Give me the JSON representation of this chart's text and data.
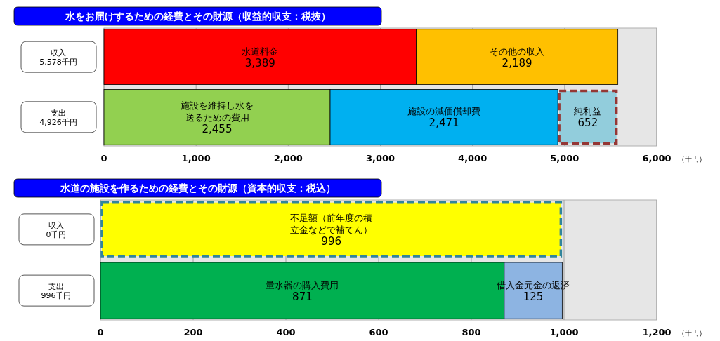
{
  "chart_data": [
    {
      "type": "bar",
      "title": "水をお届けするための経費とその財源（収益的収支：税抜）",
      "xlabel": "（千円）",
      "orientation": "horizontal",
      "stacked": true,
      "grid": "x",
      "categories": [
        "収入\n5,578千円",
        "支出\n4,926千円"
      ],
      "xlim": [
        0,
        6000
      ],
      "xticks": [
        0,
        {
          "value": 1000,
          "label": "1,000"
        },
        {
          "value": 2000,
          "label": "2,000"
        },
        {
          "value": 3000,
          "label": "3,000"
        },
        {
          "value": 4000,
          "label": "4,000"
        },
        {
          "value": 5000,
          "label": "5,000"
        },
        {
          "value": 6000,
          "label": "6,000"
        }
      ],
      "series": [
        {
          "name": "水道料金",
          "color": "#ff0000",
          "values": [
            3389,
            null
          ],
          "value_labels": [
            "3,389",
            null
          ]
        },
        {
          "name": "その他の収入",
          "color": "#ffc000",
          "values": [
            2189,
            null
          ],
          "value_labels": [
            "2,189",
            null
          ]
        },
        {
          "name": "施設を維持し水を送るための費用",
          "color": "#92d050",
          "values": [
            null,
            2455
          ],
          "value_labels": [
            null,
            "2,455"
          ]
        },
        {
          "name": "施設の減価償却費",
          "color": "#00b0f0",
          "values": [
            null,
            2471
          ],
          "value_labels": [
            null,
            "2,471"
          ]
        },
        {
          "name": "純利益",
          "color": "#92cddc",
          "values": [
            null,
            652
          ],
          "value_labels": [
            null,
            "652"
          ],
          "line_style": "dashed"
        }
      ]
    },
    {
      "type": "bar",
      "title": "水道の施設を作るための経費とその財源（資本的収支：税込）",
      "xlabel": "（千円）",
      "orientation": "horizontal",
      "stacked": true,
      "grid": "x",
      "categories": [
        "収入\n0千円",
        "支出\n996千円"
      ],
      "xlim": [
        0,
        1200
      ],
      "xticks": [
        0,
        200,
        400,
        600,
        800,
        {
          "value": 1000,
          "label": "1,000"
        },
        {
          "value": 1200,
          "label": "1,200"
        }
      ],
      "series": [
        {
          "name": "不足額（前年度の積立金などで補てん）",
          "color": "#ffff00",
          "values": [
            996,
            null
          ],
          "value_labels": [
            "996",
            null
          ],
          "line_style": "dashed"
        },
        {
          "name": "量水器の購入費用",
          "color": "#00b050",
          "values": [
            null,
            871
          ],
          "value_labels": [
            null,
            "871"
          ]
        },
        {
          "name": "借入金元金の返済",
          "color": "#8db4e2",
          "values": [
            null,
            125
          ],
          "value_labels": [
            null,
            "125"
          ]
        }
      ]
    }
  ]
}
